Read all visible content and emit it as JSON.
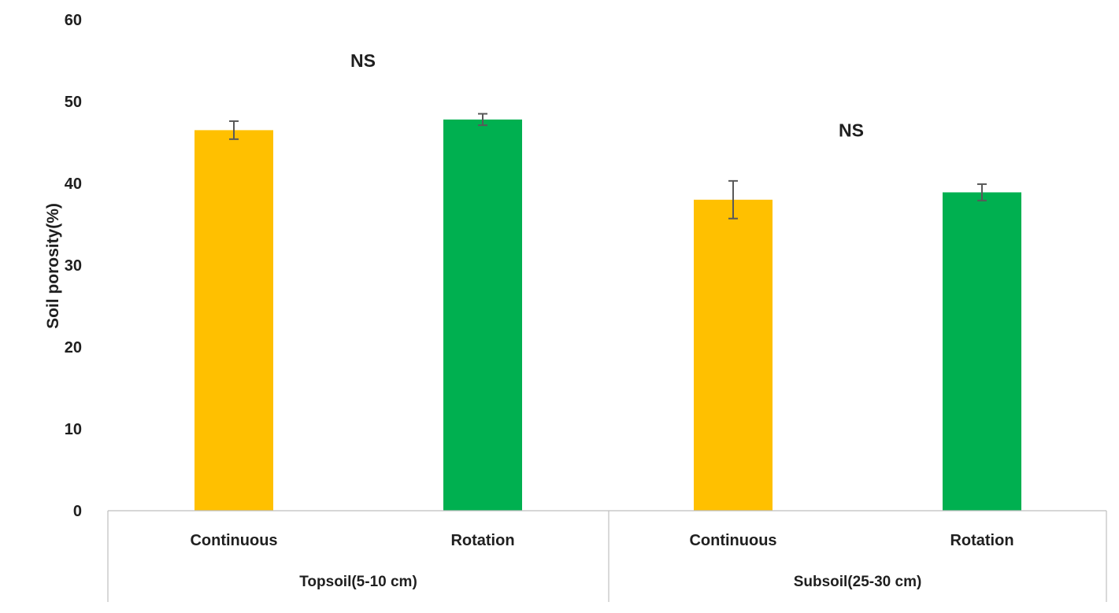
{
  "chart_data": {
    "type": "bar",
    "ylabel": "Soil porosity(%)",
    "xlabel": "",
    "ylim": [
      0,
      60
    ],
    "yticks": [
      0,
      10,
      20,
      30,
      40,
      50,
      60
    ],
    "grid": false,
    "groups": [
      {
        "label": "Topsoil(5-10 cm)",
        "annotation": "NS",
        "bars": [
          {
            "label": "Continuous",
            "value": 46.5,
            "error": 1.1,
            "color": "#FFC000"
          },
          {
            "label": "Rotation",
            "value": 47.8,
            "error": 0.7,
            "color": "#00B050"
          }
        ]
      },
      {
        "label": "Subsoil(25-30 cm)",
        "annotation": "NS",
        "bars": [
          {
            "label": "Continuous",
            "value": 38.0,
            "error": 2.3,
            "color": "#FFC000"
          },
          {
            "label": "Rotation",
            "value": 38.9,
            "error": 1.0,
            "color": "#00B050"
          }
        ]
      }
    ],
    "annotation_values": [
      55,
      46.5
    ]
  }
}
